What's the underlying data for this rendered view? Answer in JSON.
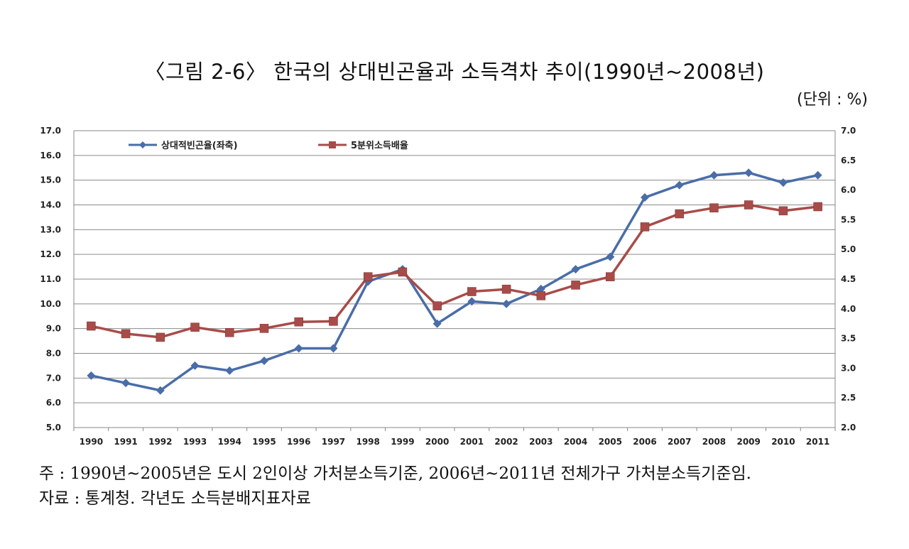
{
  "title": "〈그림 2-6〉 한국의 상대빈곤율과 소득격차 추이(1990년~2008년)",
  "unit_label": "(단위 : %)",
  "notes": {
    "note": "주 : 1990년~2005년은 도시 2인이상 가처분소득기준, 2006년~2011년 전체가구 가처분소득기준임.",
    "source": "자료 : 통계청. 각년도 소득분배지표자료"
  },
  "chart_data": {
    "type": "line",
    "x": [
      "1990",
      "1991",
      "1992",
      "1993",
      "1994",
      "1995",
      "1996",
      "1997",
      "1998",
      "1999",
      "2000",
      "2001",
      "2002",
      "2003",
      "2004",
      "2005",
      "2006",
      "2007",
      "2008",
      "2009",
      "2010",
      "2011"
    ],
    "y_left": {
      "min": 5.0,
      "max": 17.0,
      "step": 1.0,
      "ticks": [
        "5.0",
        "6.0",
        "7.0",
        "8.0",
        "9.0",
        "10.0",
        "11.0",
        "12.0",
        "13.0",
        "14.0",
        "15.0",
        "16.0",
        "17.0"
      ]
    },
    "y_right": {
      "min": 2.0,
      "max": 7.0,
      "step": 0.5,
      "ticks": [
        "2.0",
        "2.5",
        "3.0",
        "3.5",
        "4.0",
        "4.5",
        "5.0",
        "5.5",
        "6.0",
        "6.5",
        "7.0"
      ]
    },
    "grid": true,
    "legend_position": "top-left",
    "series": [
      {
        "name": "상대적빈곤율(좌축)",
        "axis": "left",
        "marker": "diamond",
        "color": "#4a6da8",
        "values": [
          7.1,
          6.8,
          6.5,
          7.5,
          7.3,
          7.7,
          8.2,
          8.2,
          10.9,
          11.4,
          9.2,
          10.1,
          10.0,
          10.6,
          11.4,
          11.9,
          14.3,
          14.8,
          15.2,
          15.3,
          14.9,
          15.2
        ]
      },
      {
        "name": "5분위소득배율",
        "axis": "right",
        "marker": "square",
        "color": "#a84c49",
        "values": [
          3.71,
          3.58,
          3.52,
          3.69,
          3.6,
          3.67,
          3.78,
          3.79,
          4.54,
          4.62,
          4.05,
          4.29,
          4.33,
          4.22,
          4.4,
          4.54,
          5.38,
          5.6,
          5.7,
          5.75,
          5.65,
          5.72
        ]
      }
    ]
  }
}
